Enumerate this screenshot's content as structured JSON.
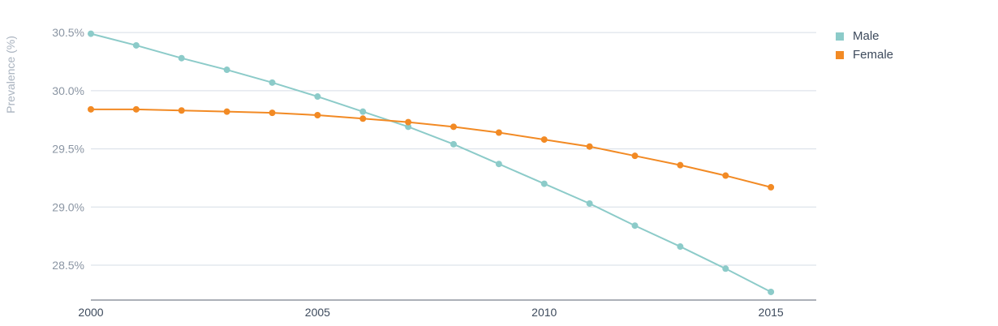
{
  "chart_data": {
    "type": "line",
    "title": "",
    "xlabel": "",
    "ylabel": "Prevalence (%)",
    "xlim": [
      2000,
      2016
    ],
    "ylim": [
      28.2,
      30.55
    ],
    "x_ticks": [
      2000,
      2005,
      2010,
      2015
    ],
    "x_tick_labels": [
      "2000",
      "2005",
      "2010",
      "2015"
    ],
    "y_ticks": [
      28.5,
      29.0,
      29.5,
      30.0,
      30.5
    ],
    "y_tick_labels": [
      "28.5%",
      "29.0%",
      "29.5%",
      "30.0%",
      "30.5%"
    ],
    "grid": "horizontal",
    "legend_position": "top-right",
    "x": [
      2000,
      2001,
      2002,
      2003,
      2004,
      2005,
      2006,
      2007,
      2008,
      2009,
      2010,
      2011,
      2012,
      2013,
      2014,
      2015
    ],
    "series": [
      {
        "name": "Male",
        "color": "#8ccbc9",
        "values": [
          30.49,
          30.39,
          30.28,
          30.18,
          30.07,
          29.95,
          29.82,
          29.69,
          29.54,
          29.37,
          29.2,
          29.03,
          28.84,
          28.66,
          28.47,
          28.27
        ]
      },
      {
        "name": "Female",
        "color": "#f28a24",
        "values": [
          29.84,
          29.84,
          29.83,
          29.82,
          29.81,
          29.79,
          29.76,
          29.73,
          29.69,
          29.64,
          29.58,
          29.52,
          29.44,
          29.36,
          29.27,
          29.17
        ]
      }
    ]
  },
  "colors": {
    "grid": "#d6dde6",
    "axis": "#5a6272",
    "tick_text": "#8a95a3",
    "x_tick_text": "#3d4a5c",
    "ylabel_text": "#a9b3bf"
  }
}
